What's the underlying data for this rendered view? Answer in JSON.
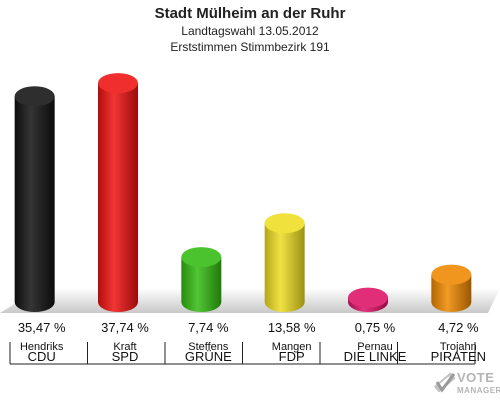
{
  "header": {
    "title": "Stadt Mülheim an der Ruhr",
    "subtitle": "Landtagswahl 13.05.2012",
    "subtitle2": "Erststimmen Stimmbezirk 191"
  },
  "logo": {
    "line1": "VOTE",
    "line2": "MANAGER"
  },
  "chart_data": {
    "type": "bar",
    "title": "Stadt Mülheim an der Ruhr",
    "subtitle": "Landtagswahl 13.05.2012 — Erststimmen Stimmbezirk 191",
    "categories": [
      "CDU",
      "SPD",
      "GRÜNE",
      "FDP",
      "DIE LINKE",
      "PIRATEN"
    ],
    "candidates": [
      "Hendriks",
      "Kraft",
      "Steffens",
      "Mangen",
      "Pernau",
      "Trojahn"
    ],
    "values": [
      35.47,
      37.74,
      7.74,
      13.58,
      0.75,
      4.72
    ],
    "value_labels": [
      "35,47 %",
      "37,74 %",
      "7,74 %",
      "13,58 %",
      "0,75 %",
      "4,72 %"
    ],
    "colors": [
      "#111111",
      "#ee1111",
      "#33bb11",
      "#eedd22",
      "#dd1166",
      "#ee8800"
    ],
    "ylim": [
      0,
      40
    ],
    "grid": false,
    "legend": "none"
  }
}
